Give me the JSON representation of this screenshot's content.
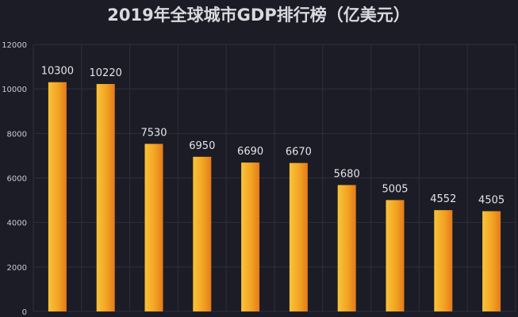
{
  "chart_data": {
    "type": "bar",
    "title": "2019年全球城市GDP排行榜（亿美元）",
    "categories": [
      "",
      "",
      "",
      "",
      "",
      "",
      "",
      "",
      "",
      ""
    ],
    "values": [
      10300,
      10220,
      7530,
      6950,
      6690,
      6670,
      5680,
      5005,
      4552,
      4505
    ],
    "yticks": [
      "0",
      "2000",
      "4000",
      "6000",
      "8000",
      "10000",
      "12000"
    ],
    "ylim": [
      0,
      12000
    ],
    "grid": true,
    "colors": {
      "background": "#1b1c26",
      "bar_top": "#f7b52a",
      "bar_bottom": "#e8751c",
      "grid": "#2d2f3c",
      "text": "#d9d9df"
    }
  }
}
